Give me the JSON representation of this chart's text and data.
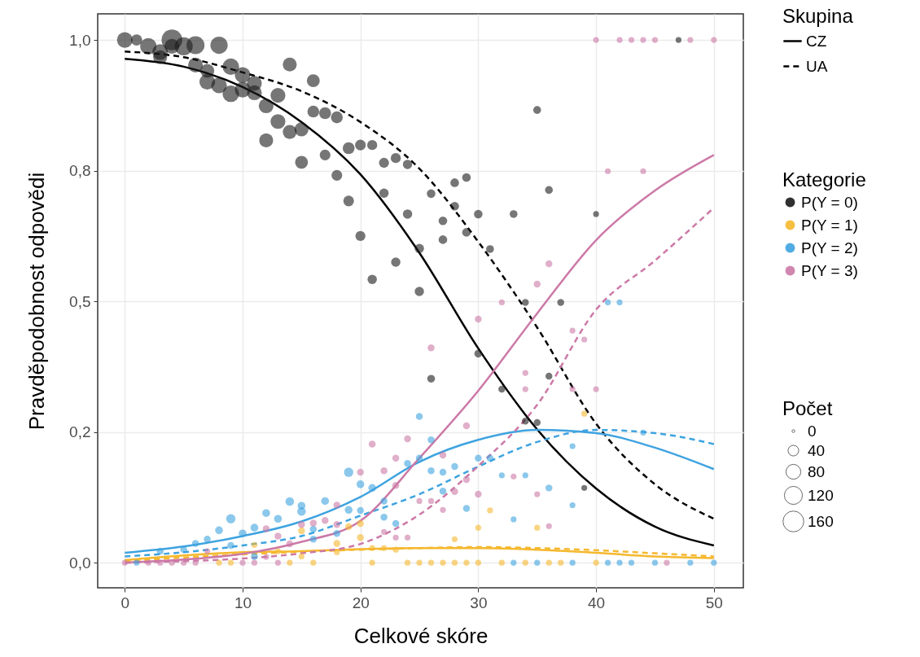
{
  "chart_data": {
    "type": "line",
    "xlabel": "Celkové skóre",
    "ylabel": "Pravděpodobnost odpovědi",
    "legend_title": [
      "Skupina",
      "Kategorie",
      "Počet"
    ],
    "legend": "right",
    "grid": true,
    "xlim": [
      -2.3,
      52.5
    ],
    "xticks": [
      0,
      10,
      20,
      30,
      40,
      50
    ],
    "ylim": [
      -0.048,
      1.05
    ],
    "yticks": [
      {
        "value": 0,
        "label": "0,0"
      },
      {
        "value": 0.25,
        "label": "0,2"
      },
      {
        "value": 0.5,
        "label": "0,5"
      },
      {
        "value": 0.75,
        "label": "0,8"
      },
      {
        "value": 1,
        "label": "1,0"
      }
    ],
    "size_legend": [
      0,
      40,
      80,
      120,
      160
    ],
    "series": [
      {
        "name": "CZ",
        "type": "line",
        "line_style": "solid",
        "color": "#000000",
        "x": [
          0,
          5,
          10,
          15,
          20,
          25,
          30,
          35,
          40,
          45,
          50
        ],
        "values": [
          0.964,
          0.949,
          0.91,
          0.843,
          0.743,
          0.593,
          0.41,
          0.255,
          0.142,
          0.069,
          0.033
        ]
      },
      {
        "name": "UA",
        "type": "line",
        "line_style": "dashed",
        "color": "#000000",
        "x": [
          0,
          5,
          10,
          15,
          20,
          25,
          30,
          35,
          40,
          45,
          50
        ],
        "values": [
          0.978,
          0.967,
          0.938,
          0.902,
          0.843,
          0.754,
          0.614,
          0.45,
          0.266,
          0.15,
          0.084
        ]
      },
      {
        "type": "line",
        "line_style": "solid",
        "color": "#f5b82e",
        "x": [
          0,
          5,
          10,
          15,
          20,
          25,
          30,
          35,
          40,
          45,
          50
        ],
        "values": [
          0.005,
          0.014,
          0.02,
          0.022,
          0.026,
          0.028,
          0.028,
          0.025,
          0.019,
          0.012,
          0.009
        ]
      },
      {
        "type": "line",
        "line_style": "dashed",
        "color": "#f5b82e",
        "x": [
          0,
          5,
          10,
          15,
          20,
          25,
          30,
          35,
          40,
          45,
          50
        ],
        "values": [
          0.003,
          0.01,
          0.016,
          0.021,
          0.025,
          0.028,
          0.03,
          0.028,
          0.024,
          0.018,
          0.012
        ]
      },
      {
        "type": "line",
        "line_style": "solid",
        "color": "#3ea3e0",
        "x": [
          0,
          5,
          10,
          15,
          20,
          25,
          30,
          35,
          40,
          45,
          50
        ],
        "values": [
          0.019,
          0.031,
          0.051,
          0.079,
          0.126,
          0.193,
          0.235,
          0.254,
          0.248,
          0.22,
          0.179
        ]
      },
      {
        "type": "line",
        "line_style": "dashed",
        "color": "#3ea3e0",
        "x": [
          0,
          5,
          10,
          15,
          20,
          25,
          30,
          35,
          40,
          45,
          50
        ],
        "values": [
          0.012,
          0.02,
          0.033,
          0.051,
          0.09,
          0.131,
          0.184,
          0.231,
          0.254,
          0.248,
          0.227
        ]
      },
      {
        "type": "line",
        "line_style": "solid",
        "color": "#cc79a7",
        "x": [
          0,
          5,
          10,
          15,
          20,
          25,
          30,
          35,
          40,
          45,
          50
        ],
        "values": [
          0.0,
          0.006,
          0.017,
          0.04,
          0.08,
          0.2,
          0.329,
          0.477,
          0.617,
          0.712,
          0.78
        ]
      },
      {
        "type": "line",
        "line_style": "dashed",
        "color": "#cc79a7",
        "x": [
          0,
          5,
          10,
          15,
          20,
          25,
          30,
          35,
          40,
          45,
          50
        ],
        "values": [
          0.0,
          0.003,
          0.008,
          0.018,
          0.036,
          0.092,
          0.185,
          0.302,
          0.484,
          0.578,
          0.679
        ]
      },
      {
        "name": "P(Y = 0)",
        "type": "scatter",
        "color": "#1a1a1a",
        "x": [
          0,
          1,
          2,
          3,
          3,
          4,
          4,
          5,
          6,
          6,
          7,
          7,
          8,
          8,
          9,
          9,
          10,
          10,
          11,
          11,
          12,
          12,
          13,
          13,
          14,
          14,
          15,
          15,
          16,
          16,
          17,
          17,
          18,
          18,
          19,
          19,
          20,
          20,
          21,
          21,
          22,
          22,
          23,
          23,
          24,
          24,
          25,
          25,
          26,
          26,
          27,
          27,
          28,
          28,
          29,
          29,
          30,
          30,
          31,
          32,
          33,
          34,
          34,
          35,
          35,
          36,
          36,
          37,
          39,
          40,
          47
        ],
        "values": [
          1.0,
          1.0,
          0.988,
          0.977,
          0.967,
          1.0,
          0.988,
          0.988,
          0.99,
          0.952,
          0.941,
          0.92,
          0.99,
          0.913,
          0.949,
          0.897,
          0.933,
          0.905,
          0.917,
          0.899,
          0.874,
          0.808,
          0.894,
          0.844,
          0.953,
          0.824,
          0.829,
          0.766,
          0.922,
          0.863,
          0.86,
          0.78,
          0.852,
          0.741,
          0.793,
          0.692,
          0.799,
          0.625,
          0.799,
          0.542,
          0.765,
          0.707,
          0.774,
          0.575,
          0.762,
          0.667,
          0.601,
          0.519,
          0.706,
          0.352,
          0.654,
          0.618,
          0.727,
          0.682,
          0.737,
          0.632,
          0.667,
          0.4,
          0.6,
          0.332,
          0.667,
          0.498,
          0.271,
          0.866,
          0.268,
          0.713,
          0.357,
          0.498,
          0.143,
          0.667,
          1.0
        ],
        "sizes": [
          90,
          45,
          100,
          90,
          70,
          160,
          80,
          120,
          120,
          80,
          70,
          90,
          110,
          90,
          100,
          100,
          90,
          90,
          80,
          80,
          80,
          70,
          80,
          80,
          70,
          70,
          70,
          60,
          60,
          50,
          50,
          40,
          50,
          40,
          50,
          40,
          40,
          35,
          35,
          30,
          35,
          30,
          35,
          30,
          30,
          30,
          30,
          30,
          25,
          20,
          25,
          25,
          25,
          25,
          25,
          25,
          25,
          20,
          20,
          15,
          20,
          15,
          15,
          20,
          15,
          20,
          15,
          15,
          10,
          10,
          10
        ]
      },
      {
        "name": "P(Y = 1)",
        "type": "scatter",
        "color": "#f5b82e",
        "x": [
          8,
          9,
          11,
          13,
          14,
          15,
          15,
          16,
          18,
          18,
          19,
          20,
          20,
          21,
          21,
          22,
          23,
          24,
          25,
          26,
          27,
          28,
          28,
          29,
          30,
          30,
          31,
          32,
          34,
          35,
          36,
          37,
          39,
          40
        ],
        "values": [
          0,
          0,
          0.034,
          0.022,
          0,
          0.061,
          0.012,
          0,
          0.037,
          0.02,
          0.069,
          0.075,
          0.048,
          0.028,
          0,
          0.028,
          0.025,
          0,
          0,
          0,
          0,
          0.045,
          0,
          0,
          0.067,
          0,
          0.1,
          0,
          0,
          0.067,
          0,
          0,
          0.285,
          0
        ],
        "sizes": [
          10,
          10,
          10,
          10,
          10,
          15,
          10,
          10,
          15,
          10,
          15,
          15,
          15,
          10,
          10,
          10,
          10,
          10,
          10,
          10,
          10,
          10,
          10,
          10,
          10,
          10,
          10,
          10,
          10,
          10,
          10,
          10,
          10,
          10
        ]
      },
      {
        "name": "P(Y = 2)",
        "type": "scatter",
        "color": "#3ea3e0",
        "x": [
          1,
          3,
          5,
          6,
          7,
          8,
          9,
          9,
          10,
          11,
          11,
          12,
          13,
          14,
          15,
          15,
          16,
          16,
          17,
          18,
          19,
          19,
          20,
          20,
          21,
          22,
          22,
          23,
          24,
          25,
          25,
          26,
          26,
          27,
          27,
          28,
          29,
          30,
          31,
          32,
          33,
          33,
          34,
          35,
          36,
          38,
          38,
          38,
          41,
          42,
          41,
          42,
          43,
          44,
          45,
          48,
          50
        ],
        "values": [
          0,
          0.022,
          0.025,
          0.037,
          0.045,
          0.062,
          0.084,
          0.033,
          0.056,
          0.067,
          0.012,
          0.095,
          0.084,
          0.117,
          0.109,
          0.098,
          0.064,
          0.045,
          0.118,
          0.056,
          0.173,
          0.101,
          0.15,
          0.1,
          0.143,
          0.118,
          0.087,
          0.075,
          0.19,
          0.28,
          0.2,
          0.235,
          0.176,
          0.173,
          0.137,
          0.184,
          0.104,
          0.2,
          0.2,
          0.167,
          0.083,
          0,
          0.167,
          0,
          0.143,
          0.223,
          0.11,
          0,
          0.498,
          0.498,
          0,
          0,
          0,
          0.249,
          0,
          0,
          0
        ],
        "sizes": [
          10,
          15,
          15,
          15,
          15,
          20,
          30,
          15,
          20,
          20,
          15,
          20,
          20,
          25,
          20,
          25,
          15,
          15,
          20,
          15,
          30,
          20,
          20,
          15,
          20,
          15,
          15,
          15,
          15,
          15,
          15,
          15,
          15,
          15,
          15,
          15,
          15,
          15,
          15,
          10,
          10,
          10,
          10,
          10,
          15,
          10,
          10,
          10,
          10,
          10,
          10,
          10,
          10,
          10,
          10,
          10,
          10
        ]
      },
      {
        "name": "P(Y = 3)",
        "type": "scatter",
        "color": "#cc79a7",
        "x": [
          0,
          2,
          3,
          4,
          5,
          6,
          7,
          10,
          11,
          12,
          12,
          13,
          13,
          14,
          15,
          16,
          17,
          18,
          18,
          20,
          21,
          22,
          22,
          23,
          23,
          23,
          24,
          24,
          25,
          26,
          26,
          27,
          27,
          28,
          29,
          29,
          30,
          30,
          32,
          33,
          34,
          34,
          35,
          35,
          36,
          36,
          38,
          38,
          39,
          40,
          40,
          41,
          42,
          43,
          44,
          44,
          45,
          46,
          48,
          50
        ],
        "values": [
          0,
          0,
          0,
          0,
          0,
          0,
          0.022,
          0,
          0,
          0.065,
          0.011,
          0.051,
          0,
          0.036,
          0.073,
          0.076,
          0.081,
          0.11,
          0.073,
          0.173,
          0.227,
          0.176,
          0.059,
          0.2,
          0.148,
          0.048,
          0.237,
          0.048,
          0.118,
          0.411,
          0.118,
          0.206,
          0.101,
          0.136,
          0.262,
          0.159,
          0.466,
          0.131,
          0.498,
          0.165,
          0.363,
          0.332,
          0.533,
          0.131,
          0.572,
          0.07,
          0.444,
          0.332,
          0.427,
          1.0,
          0.332,
          0.749,
          1.0,
          1.0,
          1.0,
          0.749,
          1.0,
          0,
          1.0,
          1.0
        ],
        "sizes": [
          10,
          10,
          10,
          10,
          10,
          10,
          10,
          10,
          10,
          15,
          10,
          15,
          10,
          15,
          15,
          15,
          15,
          15,
          15,
          15,
          15,
          15,
          10,
          15,
          15,
          10,
          15,
          10,
          10,
          15,
          10,
          15,
          10,
          15,
          15,
          15,
          15,
          15,
          10,
          10,
          10,
          10,
          15,
          10,
          15,
          10,
          10,
          10,
          10,
          10,
          10,
          10,
          10,
          10,
          10,
          10,
          10,
          10,
          10,
          10
        ]
      }
    ]
  }
}
